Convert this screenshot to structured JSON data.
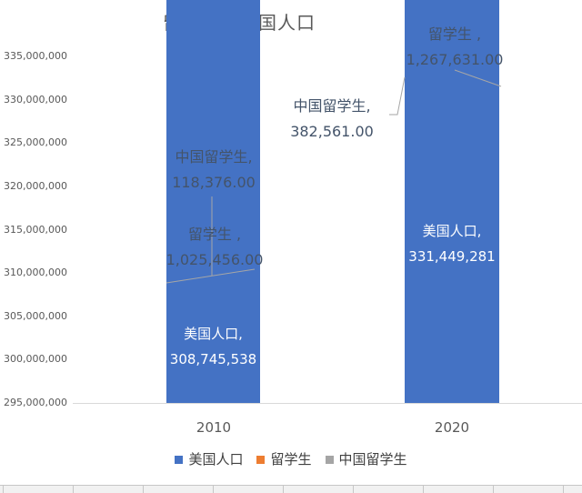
{
  "title": "留学生与美国人口",
  "chart_data": {
    "type": "bar",
    "stacked": true,
    "orientation": "vertical",
    "categories": [
      "2010",
      "2020"
    ],
    "series": [
      {
        "name": "美国人口",
        "color": "#4472C4",
        "values": [
          308745538,
          331449281
        ]
      },
      {
        "name": "留学生",
        "color": "#ED7D31",
        "values": [
          1025456,
          1267631
        ]
      },
      {
        "name": "中国留学生",
        "color": "#A5A5A5",
        "values": [
          118376,
          382561
        ]
      }
    ],
    "ylim": [
      295000000,
      335000000
    ],
    "y_tick_step": 5000000,
    "y_tick_labels": [
      "335,000,000",
      "330,000,000",
      "325,000,000",
      "320,000,000",
      "315,000,000",
      "310,000,000",
      "305,000,000",
      "300,000,000",
      "295,000,000"
    ],
    "grid": false,
    "legend_position": "bottom",
    "axis_line_color": "#d9d9d9",
    "data_labels": {
      "bar2010": {
        "usa": {
          "line1": "美国人口,",
          "line2": "308,745,538"
        },
        "intl": {
          "line1": "留学生 ,",
          "line2": "1,025,456.00"
        },
        "china": {
          "line1": "中国留学生,",
          "line2": "118,376.00"
        }
      },
      "bar2020": {
        "usa": {
          "line1": "美国人口,",
          "line2": "331,449,281"
        },
        "intl": {
          "line1": "留学生 ,",
          "line2": "1,267,631.00"
        },
        "china": {
          "line1": "中国留学生,",
          "line2": "382,561.00"
        }
      }
    },
    "text_colors": {
      "title": "#595959",
      "axis": "#595959",
      "outside_labels": "#44546A",
      "inside_labels": "#ffffff"
    }
  }
}
